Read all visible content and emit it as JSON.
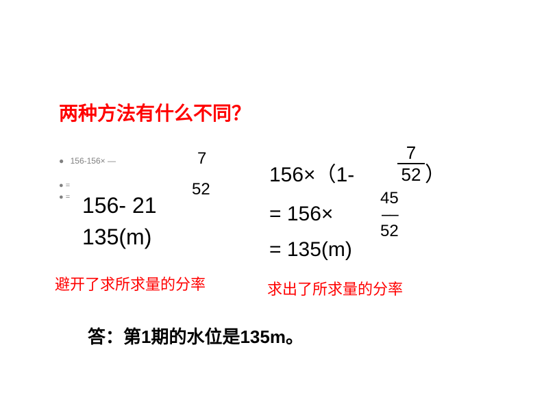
{
  "title": "两种方法有什么不同？",
  "bullet1": "156-156× —",
  "eq1": "=",
  "eq2": "=",
  "num7": "7",
  "num52": "52",
  "expr_left_1": "156- 21",
  "expr_left_2": "135(m)",
  "right": {
    "line1a": "156×（1-",
    "frac1_num": "7",
    "frac1_den": "52",
    "close": "）",
    "line2": "= 156×",
    "frac2_num": "45",
    "frac2_den": "52",
    "line3": "= 135(m)"
  },
  "note_left": "避开了求所求量的分率",
  "note_right": "求出了所求量的分率",
  "answer": "答：第1期的水位是135m。",
  "colors": {
    "red": "#ff0000",
    "gray": "#808080",
    "black": "#000000",
    "bg": "#ffffff"
  },
  "fonts": {
    "title_size": 28,
    "body_size": 30,
    "note_size": 22,
    "answer_size": 26
  }
}
